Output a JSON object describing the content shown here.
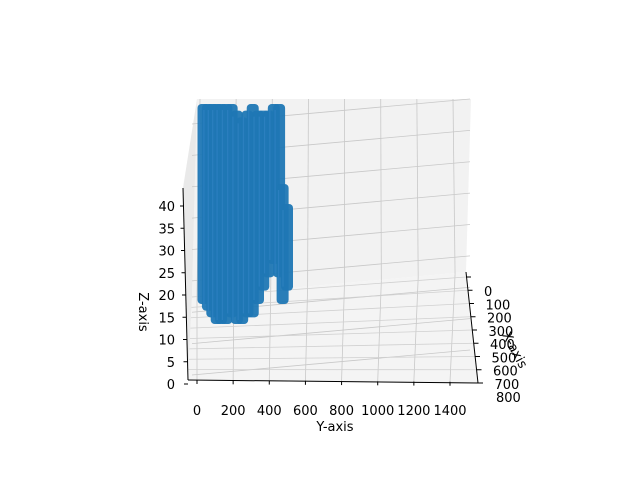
{
  "chart_data": {
    "type": "surface3d",
    "title": "",
    "xlabel": "X-axis",
    "ylabel": "Y-axis",
    "zlabel": "Z-axis",
    "x_ticks": [
      "0",
      "100",
      "200",
      "300",
      "400",
      "500",
      "600",
      "700",
      "800"
    ],
    "y_ticks": [
      "0",
      "200",
      "400",
      "600",
      "800",
      "1000",
      "1200",
      "1400"
    ],
    "z_ticks": [
      "0",
      "5",
      "10",
      "15",
      "20",
      "25",
      "30",
      "35",
      "40"
    ],
    "xlim": [
      0,
      800
    ],
    "ylim": [
      0,
      1500
    ],
    "zlim": [
      0,
      43
    ],
    "grid": true,
    "series": [
      {
        "color": "#1f77b4",
        "columns": [
          {
            "y": 20,
            "z_min": 12,
            "z_max": 42
          },
          {
            "y": 45,
            "z_min": 11,
            "z_max": 42
          },
          {
            "y": 70,
            "z_min": 10,
            "z_max": 42
          },
          {
            "y": 95,
            "z_min": 9,
            "z_max": 42
          },
          {
            "y": 120,
            "z_min": 9,
            "z_max": 42
          },
          {
            "y": 150,
            "z_min": 9,
            "z_max": 42
          },
          {
            "y": 180,
            "z_min": 10,
            "z_max": 42
          },
          {
            "y": 210,
            "z_min": 9,
            "z_max": 41
          },
          {
            "y": 240,
            "z_min": 9,
            "z_max": 40
          },
          {
            "y": 270,
            "z_min": 10,
            "z_max": 41
          },
          {
            "y": 300,
            "z_min": 10,
            "z_max": 42
          },
          {
            "y": 330,
            "z_min": 12,
            "z_max": 41
          },
          {
            "y": 360,
            "z_min": 14,
            "z_max": 41
          },
          {
            "y": 390,
            "z_min": 16,
            "z_max": 41
          },
          {
            "y": 420,
            "z_min": 18,
            "z_max": 42
          },
          {
            "y": 450,
            "z_min": 16,
            "z_max": 42
          },
          {
            "y": 470,
            "z_min": 12,
            "z_max": 30
          },
          {
            "y": 495,
            "z_min": 14,
            "z_max": 27
          }
        ]
      }
    ]
  }
}
